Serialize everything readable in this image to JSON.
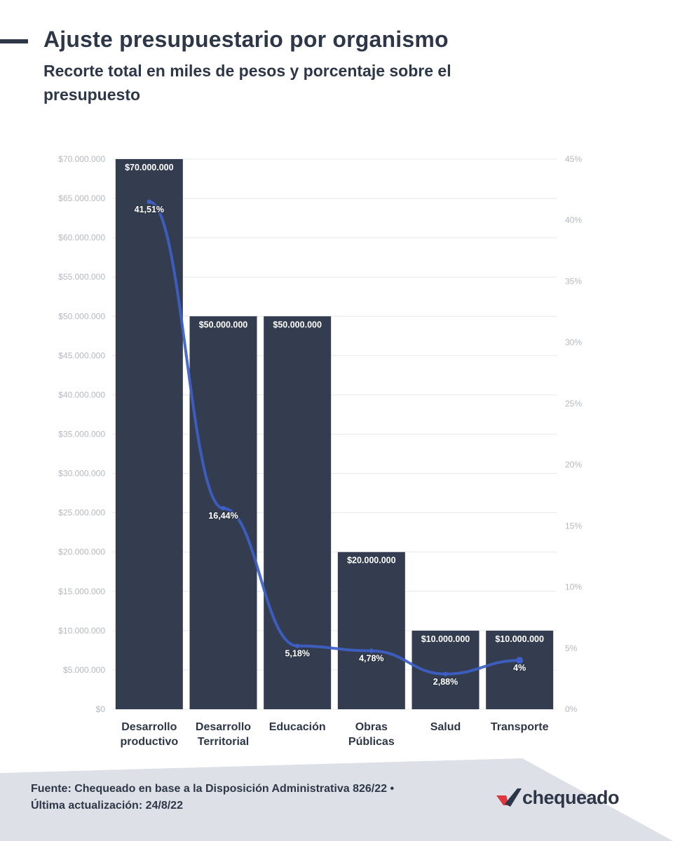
{
  "header": {
    "title": "Ajuste presupuestario por organismo",
    "subtitle": "Recorte total en miles de pesos y porcentaje sobre el presupuesto"
  },
  "footer": {
    "source": "Fuente: Chequeado en base a la Disposición Administrativa 826/22 • Última actualización: 24/8/22",
    "logo_text": "chequeado"
  },
  "colors": {
    "bar": "#343d4f",
    "line": "#3d5fc7",
    "grid": "#e6e8ec",
    "axis_text": "#b4b8c0",
    "logo_red": "#e0363e"
  },
  "chart_data": {
    "type": "bar",
    "categories": [
      [
        "Desarrollo",
        "productivo"
      ],
      [
        "Desarrollo",
        "Territorial"
      ],
      [
        "Educación"
      ],
      [
        "Obras",
        "Públicas"
      ],
      [
        "Salud"
      ],
      [
        "Transporte"
      ]
    ],
    "series": [
      {
        "type": "bar",
        "axis": "left",
        "values": [
          70000000,
          50000000,
          50000000,
          20000000,
          10000000,
          10000000
        ],
        "labels": [
          "$70.000.000",
          "$50.000.000",
          "$50.000.000",
          "$20.000.000",
          "$10.000.000",
          "$10.000.000"
        ]
      },
      {
        "type": "line",
        "axis": "right",
        "smooth": true,
        "values": [
          41.51,
          16.44,
          5.18,
          4.78,
          2.88,
          4
        ],
        "labels": [
          "41,51%",
          "16,44%",
          "5,18%",
          "4,78%",
          "2,88%",
          "4%"
        ]
      }
    ],
    "y_left": {
      "ylim": [
        0,
        70000000
      ],
      "ticks": [
        0,
        5000000,
        10000000,
        15000000,
        20000000,
        25000000,
        30000000,
        35000000,
        40000000,
        45000000,
        50000000,
        55000000,
        60000000,
        65000000,
        70000000
      ],
      "tick_labels": [
        "$0",
        "$5.000.000",
        "$10.000.000",
        "$15.000.000",
        "$20.000.000",
        "$25.000.000",
        "$30.000.000",
        "$35.000.000",
        "$40.000.000",
        "$45.000.000",
        "$50.000.000",
        "$55.000.000",
        "$60.000.000",
        "$65.000.000",
        "$70.000.000"
      ]
    },
    "y_right": {
      "ylim": [
        0,
        45
      ],
      "ticks": [
        0,
        5,
        10,
        15,
        20,
        25,
        30,
        35,
        40,
        45
      ],
      "tick_labels": [
        "0%",
        "5%",
        "10%",
        "15%",
        "20%",
        "25%",
        "30%",
        "35%",
        "40%",
        "45%"
      ]
    },
    "grid": true,
    "legend": "none"
  }
}
